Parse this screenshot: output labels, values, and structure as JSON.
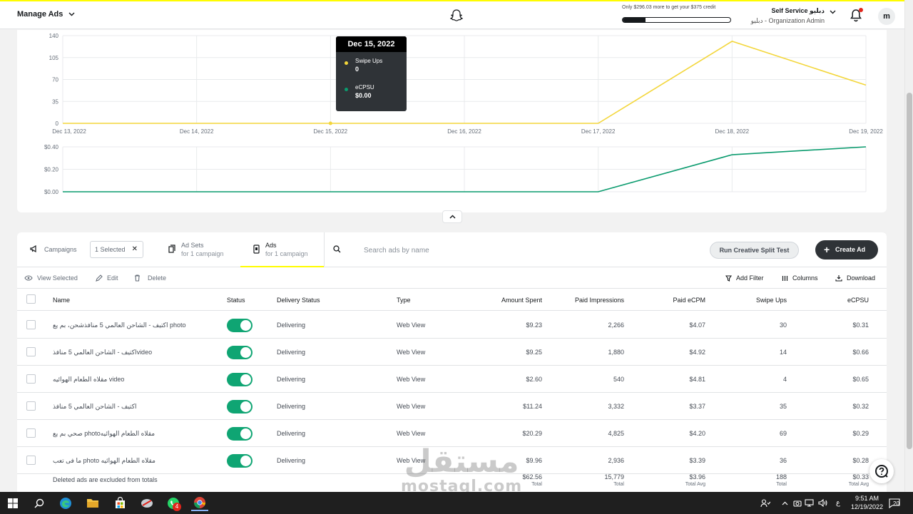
{
  "header": {
    "title": "Manage Ads",
    "budget_text": "Only $296.03 more to get your $375 credit",
    "budget_progress_percent": 21,
    "account_name": "Self Service دبليو",
    "account_role": "دبليو - Organization Admin",
    "avatar_letter": "m"
  },
  "chart_data": [
    {
      "type": "line",
      "x": [
        "Dec 13, 2022",
        "Dec 14, 2022",
        "Dec 15, 2022",
        "Dec 16, 2022",
        "Dec 17, 2022",
        "Dec 18, 2022",
        "Dec 19, 2022"
      ],
      "series": [
        {
          "name": "Swipe Ups",
          "values": [
            0,
            0,
            0,
            0,
            0,
            131,
            61
          ],
          "color": "#f3d63a"
        }
      ],
      "yticks": [
        "140",
        "105",
        "70",
        "35",
        "0"
      ],
      "ylim": [
        0,
        140
      ],
      "grid": true
    },
    {
      "type": "line",
      "x": [
        "Dec 13, 2022",
        "Dec 14, 2022",
        "Dec 15, 2022",
        "Dec 16, 2022",
        "Dec 17, 2022",
        "Dec 18, 2022",
        "Dec 19, 2022"
      ],
      "series": [
        {
          "name": "eCPSU",
          "values": [
            0,
            0,
            0,
            0,
            0,
            0.33,
            0.4
          ],
          "color": "#0a9b6e"
        }
      ],
      "yticks": [
        "$0.40",
        "$0.20",
        "$0.00"
      ],
      "ylim": [
        0,
        0.4
      ],
      "grid": true
    }
  ],
  "tooltip": {
    "date": "Dec 15, 2022",
    "items": [
      {
        "label": "Swipe Ups",
        "value": "0",
        "color": "#f3d63a"
      },
      {
        "label": "eCPSU",
        "value": "$0.00",
        "color": "#0a9b6e"
      }
    ]
  },
  "tabs": {
    "campaigns": "Campaigns",
    "selected_chip": "1 Selected",
    "adsets": {
      "label": "Ad Sets",
      "sub": "for 1 campaign"
    },
    "ads": {
      "label": "Ads",
      "sub": "for 1 campaign"
    }
  },
  "search": {
    "placeholder": "Search ads by name"
  },
  "buttons": {
    "split_test": "Run Creative Split Test",
    "create": "Create Ad"
  },
  "actions": {
    "view_selected": "View Selected",
    "edit": "Edit",
    "delete": "Delete",
    "add_filter": "Add Filter",
    "columns": "Columns",
    "download": "Download"
  },
  "table": {
    "columns": [
      "Name",
      "Status",
      "Delivery Status",
      "Type",
      "Amount Spent",
      "Paid Impressions",
      "Paid eCPM",
      "Swipe Ups",
      "eCPSU"
    ],
    "rows": [
      {
        "name": "اكتيف - الشاحن العالمي 5 منافذشحن، بم يع photo",
        "delivery": "Delivering",
        "type": "Web View",
        "spent": "$9.23",
        "impressions": "2,266",
        "ecpm": "$4.07",
        "swipes": "30",
        "ecpsu": "$0.31"
      },
      {
        "name": "اكتيف - الشاحن العالمي 5 منافذvideo",
        "delivery": "Delivering",
        "type": "Web View",
        "spent": "$9.25",
        "impressions": "1,880",
        "ecpm": "$4.92",
        "swipes": "14",
        "ecpsu": "$0.66"
      },
      {
        "name": "مقلاه الطعام الهوائيه video",
        "delivery": "Delivering",
        "type": "Web View",
        "spent": "$2.60",
        "impressions": "540",
        "ecpm": "$4.81",
        "swipes": "4",
        "ecpsu": "$0.65"
      },
      {
        "name": "اكتيف - الشاحن العالمي 5 منافذ",
        "delivery": "Delivering",
        "type": "Web View",
        "spent": "$11.24",
        "impressions": "3,332",
        "ecpm": "$3.37",
        "swipes": "35",
        "ecpsu": "$0.32"
      },
      {
        "name": "صحي بم يع photoمقلاه الطعام الهوائيه",
        "delivery": "Delivering",
        "type": "Web View",
        "spent": "$20.29",
        "impressions": "4,825",
        "ecpm": "$4.20",
        "swipes": "69",
        "ecpsu": "$0.29"
      },
      {
        "name": "ما فى تعب photo مقلاه الطعام الهوائيه",
        "delivery": "Delivering",
        "type": "Web View",
        "spent": "$9.96",
        "impressions": "2,936",
        "ecpm": "$3.39",
        "swipes": "36",
        "ecpsu": "$0.28"
      }
    ],
    "totals": {
      "note": "Deleted ads are excluded from totals",
      "spent": "$62.56",
      "spent_sub": "Total",
      "impressions": "15,779",
      "impressions_sub": "Total",
      "ecpm": "$3.96",
      "ecpm_sub": "Total Avg",
      "swipes": "188",
      "swipes_sub": "Total",
      "ecpsu": "$0.33",
      "ecpsu_sub": "Total Avg"
    }
  },
  "watermark": {
    "arabic": "مستقل",
    "latin": "mostaql.com"
  },
  "taskbar": {
    "time": "9:51 AM",
    "date": "12/19/2022",
    "lang": "ع",
    "notif_count": "20",
    "whatsapp_badge": "4"
  }
}
